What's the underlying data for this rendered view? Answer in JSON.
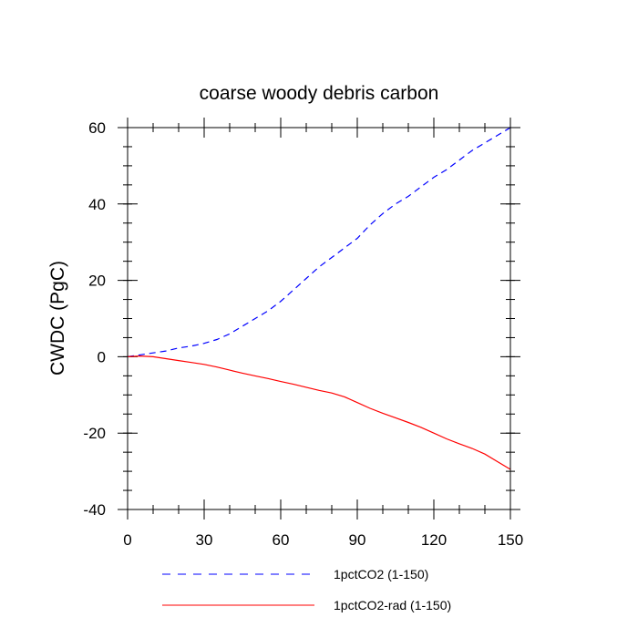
{
  "chart_data": {
    "type": "line",
    "title": "coarse woody debris carbon",
    "xlabel": "",
    "ylabel": "CWDC  (PgC)",
    "xlim": [
      0,
      150
    ],
    "ylim": [
      -40,
      60
    ],
    "x_ticks": [
      0,
      30,
      60,
      90,
      120,
      150
    ],
    "x_tick_labels": [
      "0",
      "30",
      "60",
      "90",
      "120",
      "150"
    ],
    "y_ticks": [
      -40,
      -20,
      0,
      20,
      40,
      60
    ],
    "y_tick_labels": [
      "-40",
      "-20",
      "0",
      "20",
      "40",
      "60"
    ],
    "grid": false,
    "legend_position": "bottom",
    "series": [
      {
        "name": "1pctCO2 (1-150)",
        "color": "#0000ff",
        "style": "dashed",
        "x": [
          0,
          5,
          10,
          15,
          20,
          25,
          30,
          35,
          40,
          45,
          50,
          55,
          60,
          65,
          70,
          75,
          80,
          85,
          90,
          95,
          100,
          105,
          110,
          115,
          120,
          125,
          130,
          135,
          140,
          145,
          150
        ],
        "y": [
          0,
          0.5,
          1.0,
          1.5,
          2.3,
          2.8,
          3.5,
          4.5,
          6.0,
          8.0,
          10.0,
          12.0,
          14.5,
          17.5,
          20.5,
          23.5,
          26.0,
          28.5,
          31.0,
          34.5,
          37.5,
          40.0,
          42.0,
          44.5,
          47.0,
          49.0,
          51.5,
          54.0,
          56.0,
          58.0,
          60.0
        ]
      },
      {
        "name": "1pctCO2-rad (1-150)",
        "color": "#ff0000",
        "style": "solid",
        "x": [
          0,
          5,
          10,
          15,
          20,
          25,
          30,
          35,
          40,
          45,
          50,
          55,
          60,
          65,
          70,
          75,
          80,
          85,
          90,
          95,
          100,
          105,
          110,
          115,
          120,
          125,
          130,
          135,
          140,
          145,
          150
        ],
        "y": [
          0,
          0.2,
          0,
          -0.5,
          -1.0,
          -1.5,
          -2.0,
          -2.7,
          -3.5,
          -4.3,
          -5.0,
          -5.7,
          -6.5,
          -7.2,
          -8.0,
          -8.8,
          -9.5,
          -10.5,
          -12.0,
          -13.5,
          -14.8,
          -16.0,
          -17.2,
          -18.5,
          -20.0,
          -21.5,
          -22.8,
          -24.0,
          -25.5,
          -27.5,
          -29.5
        ]
      }
    ]
  }
}
